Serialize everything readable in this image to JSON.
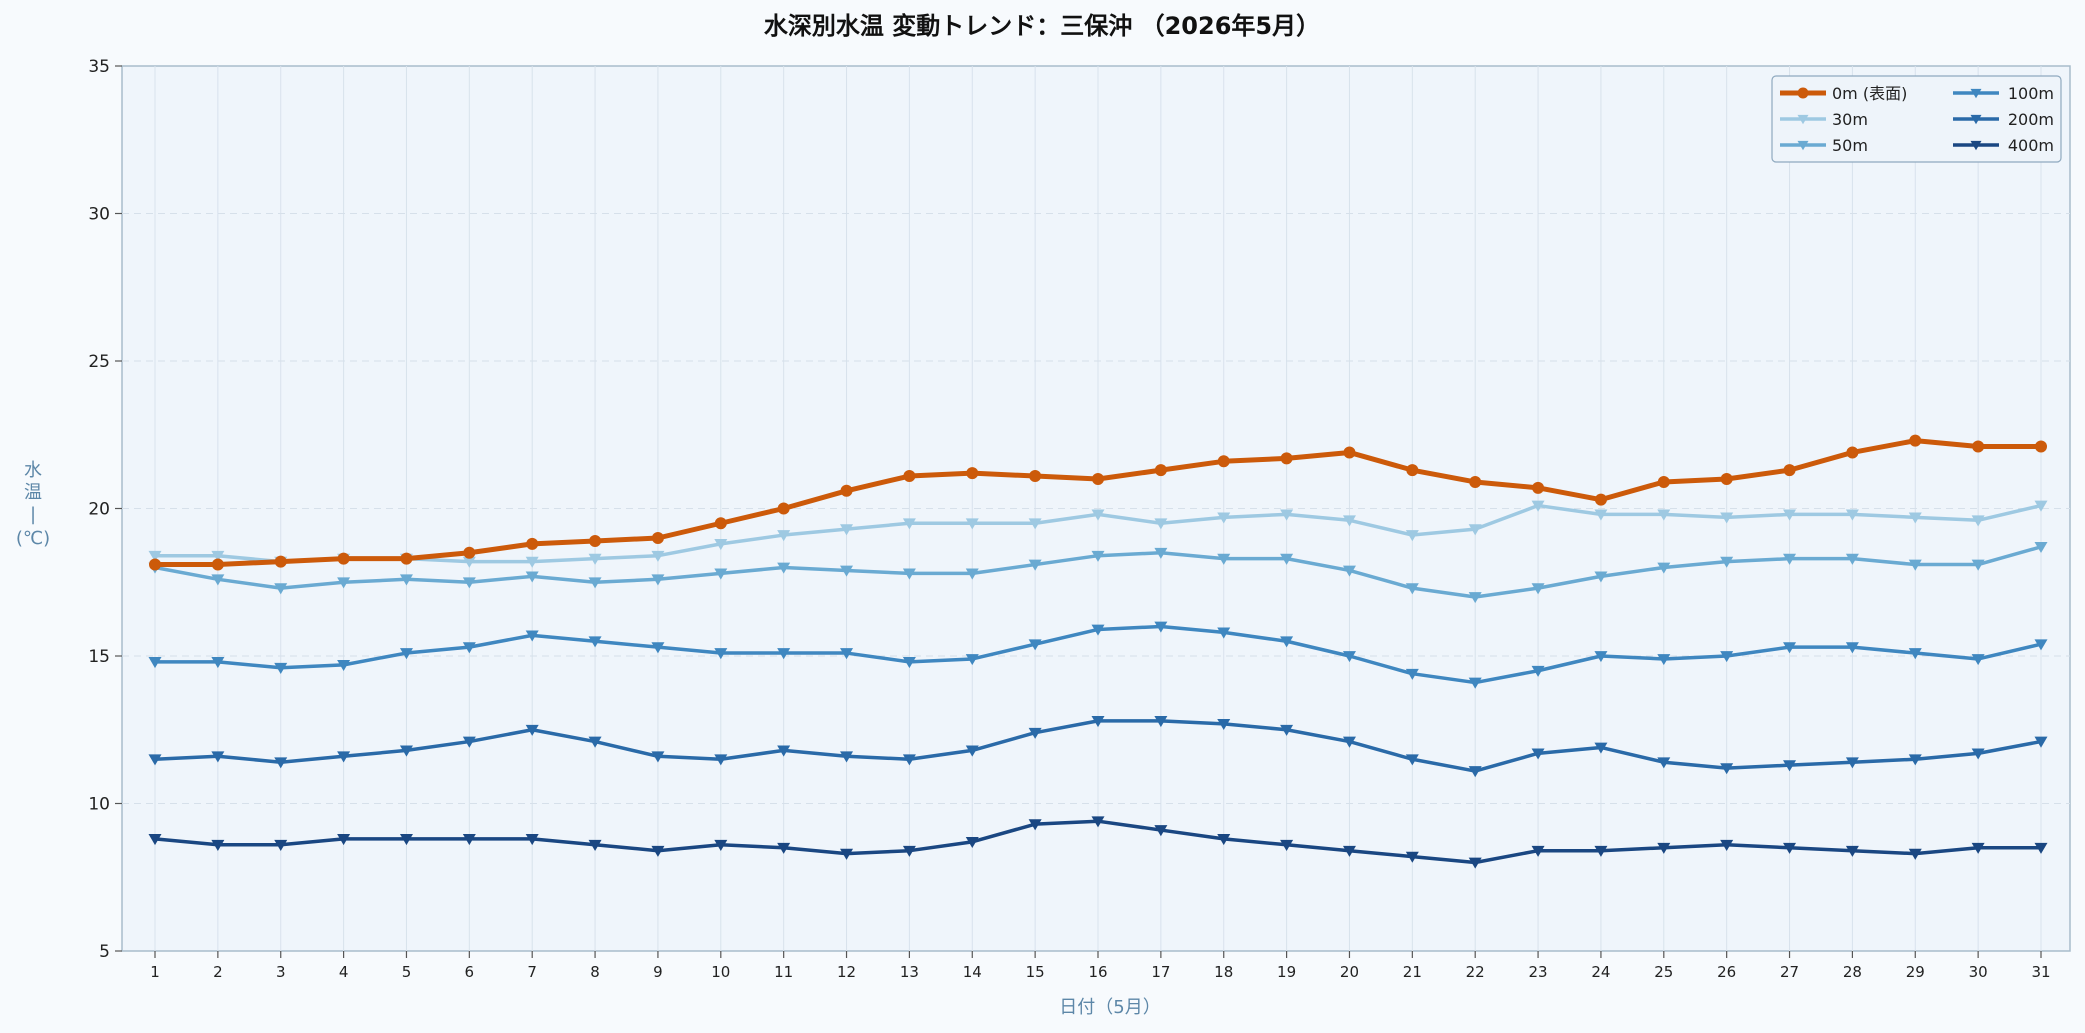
{
  "chart_data": {
    "type": "line",
    "title": "水深別水温 変動トレンド：三保沖 （2026年5月）",
    "xlabel": "日付（5月）",
    "ylabel_chars": [
      "水",
      "温",
      "|",
      "(℃)"
    ],
    "xlim": [
      1,
      31
    ],
    "ylim": [
      5,
      35
    ],
    "yticks": [
      5,
      10,
      15,
      20,
      25,
      30,
      35
    ],
    "grid": true,
    "legend_position": "top-right",
    "x": [
      1,
      2,
      3,
      4,
      5,
      6,
      7,
      8,
      9,
      10,
      11,
      12,
      13,
      14,
      15,
      16,
      17,
      18,
      19,
      20,
      21,
      22,
      23,
      24,
      25,
      26,
      27,
      28,
      29,
      30,
      31
    ],
    "series": [
      {
        "name": "0m (表面)",
        "color": "#cc5a0a",
        "marker": "circle",
        "width": 5,
        "values": [
          18.1,
          18.1,
          18.2,
          18.3,
          18.3,
          18.5,
          18.8,
          18.9,
          19.0,
          19.5,
          20.0,
          20.6,
          21.1,
          21.2,
          21.1,
          21.0,
          21.3,
          21.6,
          21.7,
          21.9,
          21.3,
          20.9,
          20.7,
          20.3,
          20.9,
          21.0,
          21.3,
          21.9,
          22.3,
          22.1,
          22.1
        ]
      },
      {
        "name": "30m",
        "color": "#9ec9e2",
        "marker": "triangle-down",
        "width": 3.5,
        "values": [
          18.4,
          18.4,
          18.2,
          18.3,
          18.3,
          18.2,
          18.2,
          18.3,
          18.4,
          18.8,
          19.1,
          19.3,
          19.5,
          19.5,
          19.5,
          19.8,
          19.5,
          19.7,
          19.8,
          19.6,
          19.1,
          19.3,
          20.1,
          19.8,
          19.8,
          19.7,
          19.8,
          19.8,
          19.7,
          19.6,
          20.1
        ]
      },
      {
        "name": "50m",
        "color": "#6aaad2",
        "marker": "triangle-down",
        "width": 3.5,
        "values": [
          18.0,
          17.6,
          17.3,
          17.5,
          17.6,
          17.5,
          17.7,
          17.5,
          17.6,
          17.8,
          18.0,
          17.9,
          17.8,
          17.8,
          18.1,
          18.4,
          18.5,
          18.3,
          18.3,
          17.9,
          17.3,
          17.0,
          17.3,
          17.7,
          18.0,
          18.2,
          18.3,
          18.3,
          18.1,
          18.1,
          18.7
        ]
      },
      {
        "name": "100m",
        "color": "#3f87c0",
        "marker": "triangle-down",
        "width": 3.5,
        "values": [
          14.8,
          14.8,
          14.6,
          14.7,
          15.1,
          15.3,
          15.7,
          15.5,
          15.3,
          15.1,
          15.1,
          15.1,
          14.8,
          14.9,
          15.4,
          15.9,
          16.0,
          15.8,
          15.5,
          15.0,
          14.4,
          14.1,
          14.5,
          15.0,
          14.9,
          15.0,
          15.3,
          15.3,
          15.1,
          14.9,
          15.4
        ]
      },
      {
        "name": "200m",
        "color": "#2a6aa8",
        "marker": "triangle-down",
        "width": 3.5,
        "values": [
          11.5,
          11.6,
          11.4,
          11.6,
          11.8,
          12.1,
          12.5,
          12.1,
          11.6,
          11.5,
          11.8,
          11.6,
          11.5,
          11.8,
          12.4,
          12.8,
          12.8,
          12.7,
          12.5,
          12.1,
          11.5,
          11.1,
          11.7,
          11.9,
          11.4,
          11.2,
          11.3,
          11.4,
          11.5,
          11.7,
          12.1
        ]
      },
      {
        "name": "400m",
        "color": "#1a4782",
        "marker": "triangle-down",
        "width": 3.5,
        "values": [
          8.8,
          8.6,
          8.6,
          8.8,
          8.8,
          8.8,
          8.8,
          8.6,
          8.4,
          8.6,
          8.5,
          8.3,
          8.4,
          8.7,
          9.3,
          9.4,
          9.1,
          8.8,
          8.6,
          8.4,
          8.2,
          8.0,
          8.4,
          8.4,
          8.5,
          8.6,
          8.5,
          8.4,
          8.3,
          8.5,
          8.5
        ]
      }
    ]
  }
}
